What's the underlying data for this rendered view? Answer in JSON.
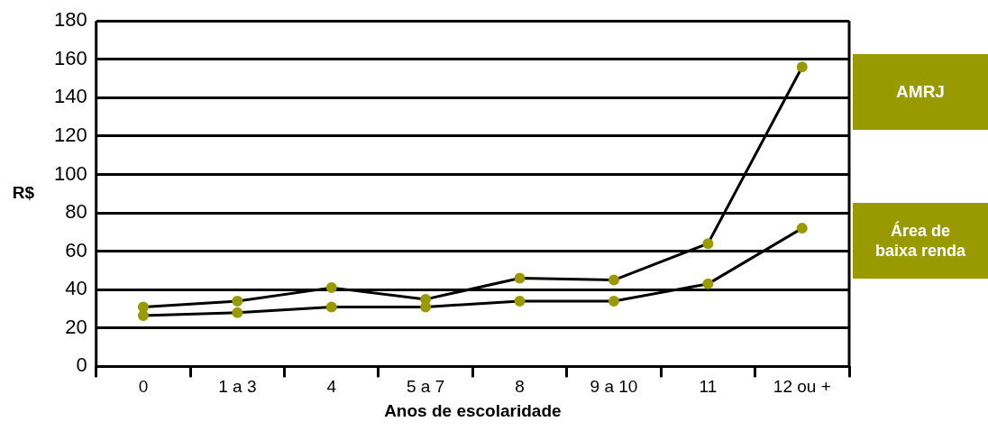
{
  "chart_data": {
    "type": "line",
    "xlabel": "Anos de escolaridade",
    "ylabel": "R$",
    "categories": [
      "0",
      "1 a 3",
      "4",
      "5 a 7",
      "8",
      "9 a 10",
      "11",
      "12 ou +"
    ],
    "series": [
      {
        "name": "AMRJ",
        "color": "#999900",
        "values": [
          31,
          34,
          41,
          35,
          46,
          45,
          64,
          156
        ]
      },
      {
        "name": "Área de baixa renda",
        "color": "#999900",
        "values": [
          26.5,
          28,
          31,
          31,
          34,
          34,
          43,
          72
        ]
      }
    ],
    "ylim": [
      0,
      180
    ],
    "yticks": [
      0,
      20,
      40,
      60,
      80,
      100,
      120,
      140,
      160,
      180
    ],
    "grid": "y",
    "legend": "right",
    "marker": "circle",
    "line_style": "solid"
  }
}
